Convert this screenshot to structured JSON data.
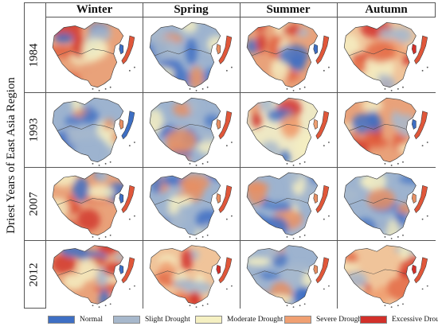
{
  "figure": {
    "y_title": "Driest Years of  East Asia Region",
    "columns": [
      "Winter",
      "Spring",
      "Summer",
      "Autumn"
    ],
    "rows": [
      "1984",
      "1993",
      "2007",
      "2012"
    ]
  },
  "legend": [
    {
      "label": "Normal",
      "color": "#3e6fc4"
    },
    {
      "label": "Slight Drought",
      "color": "#a7b8cc"
    },
    {
      "label": "Moderate Drought",
      "color": "#f5f0c2"
    },
    {
      "label": "Severe Drought",
      "color": "#f0a072"
    },
    {
      "label": "Excessive Drought",
      "color": "#d2302a"
    }
  ],
  "map_patterns": [
    [
      "red",
      "blue",
      "red",
      "orange"
    ],
    [
      "blue",
      "blue",
      "yellow",
      "red"
    ],
    [
      "red",
      "blue",
      "blue",
      "blue"
    ],
    [
      "red",
      "orange",
      "blue",
      "orange"
    ]
  ]
}
